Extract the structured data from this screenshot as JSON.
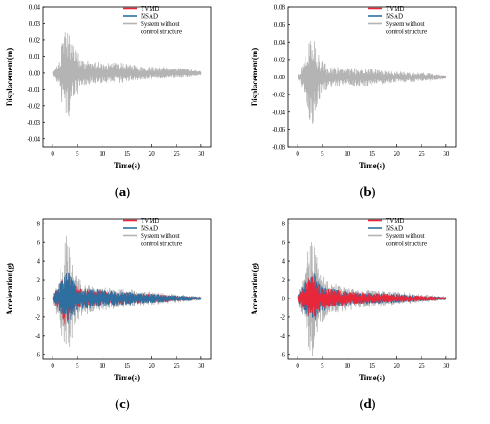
{
  "legend_labels": [
    "TVMD",
    "NSAD",
    "System without",
    "control structure"
  ],
  "colors": {
    "TVMD": "#e8283a",
    "NSAD": "#2f6f9f",
    "uncontrolled": "#b4b4b4",
    "axis": "#000000"
  },
  "chart_data": [
    {
      "id": "a",
      "type": "line",
      "caption_letter": "a",
      "ylabel": "Displacement(m)",
      "xlabel": "Time(s)",
      "xlim": [
        -2,
        32
      ],
      "ylim": [
        -0.045,
        0.04
      ],
      "xticks": [
        "0",
        "5",
        "10",
        "15",
        "20",
        "25",
        "30"
      ],
      "yticks": [
        "-0.04",
        "-0.03",
        "-0.02",
        "-0.01",
        "0.00",
        "0.01",
        "0.02",
        "0.03",
        "0.04"
      ],
      "legend_placement": "top-right",
      "series": [
        {
          "name": "TVMD",
          "envelope": [
            [
              0,
              0.0003
            ],
            [
              1.5,
              0.002
            ],
            [
              2.5,
              0.004
            ],
            [
              3.5,
              0.003
            ],
            [
              5,
              0.002
            ],
            [
              10,
              0.0015
            ],
            [
              15,
              0.0012
            ],
            [
              20,
              0.001
            ],
            [
              25,
              0.0008
            ],
            [
              30,
              0.0004
            ]
          ]
        },
        {
          "name": "NSAD",
          "envelope": [
            [
              0,
              0.0003
            ],
            [
              1.5,
              0.0015
            ],
            [
              2.5,
              0.0025
            ],
            [
              3.5,
              0.002
            ],
            [
              5,
              0.0015
            ],
            [
              10,
              0.001
            ],
            [
              15,
              0.0008
            ],
            [
              20,
              0.0007
            ],
            [
              25,
              0.0006
            ],
            [
              30,
              0.0003
            ]
          ]
        },
        {
          "name": "System without control structure",
          "envelope": [
            [
              0,
              0.001
            ],
            [
              1.5,
              0.01
            ],
            [
              2.2,
              0.025
            ],
            [
              2.8,
              0.035
            ],
            [
              3.5,
              0.025
            ],
            [
              4.5,
              0.015
            ],
            [
              6,
              0.008
            ],
            [
              10,
              0.006
            ],
            [
              14,
              0.006
            ],
            [
              18,
              0.004
            ],
            [
              22,
              0.0035
            ],
            [
              26,
              0.003
            ],
            [
              30,
              0.0012
            ]
          ]
        }
      ]
    },
    {
      "id": "b",
      "type": "line",
      "caption_letter": "b",
      "ylabel": "Displacement(m)",
      "xlabel": "Time(s)",
      "xlim": [
        -2,
        32
      ],
      "ylim": [
        -0.08,
        0.08
      ],
      "xticks": [
        "0",
        "5",
        "10",
        "15",
        "20",
        "25",
        "30"
      ],
      "yticks": [
        "-0.08",
        "-0.06",
        "-0.04",
        "-0.02",
        "0.00",
        "0.02",
        "0.04",
        "0.06",
        "0.08"
      ],
      "legend_placement": "top-right",
      "series": [
        {
          "name": "TVMD",
          "envelope": [
            [
              0,
              0.0005
            ],
            [
              1.5,
              0.004
            ],
            [
              2.5,
              0.006
            ],
            [
              3.5,
              0.005
            ],
            [
              5,
              0.003
            ],
            [
              10,
              0.0025
            ],
            [
              15,
              0.002
            ],
            [
              20,
              0.0015
            ],
            [
              25,
              0.0012
            ],
            [
              30,
              0.0006
            ]
          ]
        },
        {
          "name": "NSAD",
          "envelope": [
            [
              0,
              0.0005
            ],
            [
              1.5,
              0.003
            ],
            [
              2.5,
              0.005
            ],
            [
              3.5,
              0.004
            ],
            [
              5,
              0.0025
            ],
            [
              10,
              0.002
            ],
            [
              15,
              0.0015
            ],
            [
              20,
              0.0012
            ],
            [
              25,
              0.001
            ],
            [
              30,
              0.0005
            ]
          ]
        },
        {
          "name": "System without control structure",
          "envelope": [
            [
              0,
              0.002
            ],
            [
              1.5,
              0.02
            ],
            [
              2.2,
              0.045
            ],
            [
              2.8,
              0.062
            ],
            [
              3.5,
              0.045
            ],
            [
              4.5,
              0.025
            ],
            [
              6,
              0.013
            ],
            [
              10,
              0.01
            ],
            [
              14,
              0.011
            ],
            [
              18,
              0.007
            ],
            [
              22,
              0.006
            ],
            [
              26,
              0.005
            ],
            [
              30,
              0.002
            ]
          ]
        }
      ]
    },
    {
      "id": "c",
      "type": "line",
      "caption_letter": "c",
      "ylabel": "Acceleration(g)",
      "xlabel": "Time(s)",
      "xlim": [
        -2,
        32
      ],
      "ylim": [
        -6.5,
        8.5
      ],
      "xticks": [
        "0",
        "5",
        "10",
        "15",
        "20",
        "25",
        "30"
      ],
      "yticks": [
        "-6",
        "-4",
        "-2",
        "0",
        "2",
        "4",
        "6",
        "8"
      ],
      "legend_placement": "top-right",
      "series": [
        {
          "name": "System without control structure",
          "envelope": [
            [
              0,
              0.3
            ],
            [
              1.5,
              3
            ],
            [
              2.2,
              5.5
            ],
            [
              2.8,
              7
            ],
            [
              3.5,
              5.5
            ],
            [
              4.5,
              3
            ],
            [
              6,
              1.8
            ],
            [
              10,
              1.3
            ],
            [
              14,
              1
            ],
            [
              18,
              0.8
            ],
            [
              22,
              0.6
            ],
            [
              26,
              0.4
            ],
            [
              30,
              0.2
            ]
          ]
        },
        {
          "name": "TVMD",
          "envelope": [
            [
              0,
              0.2
            ],
            [
              1.5,
              1.5
            ],
            [
              2.5,
              3
            ],
            [
              3.5,
              2.2
            ],
            [
              5,
              1.2
            ],
            [
              10,
              0.8
            ],
            [
              15,
              0.6
            ],
            [
              20,
              0.5
            ],
            [
              25,
              0.3
            ],
            [
              30,
              0.15
            ]
          ]
        },
        {
          "name": "NSAD",
          "envelope": [
            [
              0,
              0.2
            ],
            [
              1.5,
              1.8
            ],
            [
              2.5,
              2.6
            ],
            [
              3.5,
              3
            ],
            [
              4.5,
              1.8
            ],
            [
              6,
              1.2
            ],
            [
              10,
              0.9
            ],
            [
              15,
              0.7
            ],
            [
              20,
              0.5
            ],
            [
              25,
              0.35
            ],
            [
              30,
              0.15
            ]
          ]
        }
      ]
    },
    {
      "id": "d",
      "type": "line",
      "caption_letter": "d",
      "ylabel": "Acceleration(g)",
      "xlabel": "Time(s)",
      "xlim": [
        -2,
        32
      ],
      "ylim": [
        -6.5,
        8.5
      ],
      "xticks": [
        "0",
        "5",
        "10",
        "15",
        "20",
        "25",
        "30"
      ],
      "yticks": [
        "-6",
        "-4",
        "-2",
        "0",
        "2",
        "4",
        "6",
        "8"
      ],
      "legend_placement": "top-right",
      "series": [
        {
          "name": "System without control structure",
          "envelope": [
            [
              0,
              0.3
            ],
            [
              1.5,
              3
            ],
            [
              2.2,
              5.5
            ],
            [
              2.8,
              7
            ],
            [
              3.5,
              5.5
            ],
            [
              4.5,
              3
            ],
            [
              6,
              1.8
            ],
            [
              10,
              1.3
            ],
            [
              14,
              1
            ],
            [
              18,
              0.8
            ],
            [
              22,
              0.6
            ],
            [
              26,
              0.4
            ],
            [
              30,
              0.2
            ]
          ]
        },
        {
          "name": "NSAD",
          "envelope": [
            [
              0,
              0.2
            ],
            [
              1.5,
              1.8
            ],
            [
              2.5,
              2.5
            ],
            [
              3.5,
              2.8
            ],
            [
              4.5,
              1.7
            ],
            [
              6,
              1.1
            ],
            [
              10,
              0.8
            ],
            [
              15,
              0.6
            ],
            [
              20,
              0.5
            ],
            [
              25,
              0.3
            ],
            [
              30,
              0.15
            ]
          ]
        },
        {
          "name": "TVMD",
          "envelope": [
            [
              0,
              0.2
            ],
            [
              1.5,
              1.4
            ],
            [
              2.5,
              2.6
            ],
            [
              3.5,
              2
            ],
            [
              5,
              1.1
            ],
            [
              10,
              0.7
            ],
            [
              15,
              0.55
            ],
            [
              20,
              0.45
            ],
            [
              25,
              0.3
            ],
            [
              30,
              0.15
            ]
          ]
        }
      ]
    }
  ]
}
